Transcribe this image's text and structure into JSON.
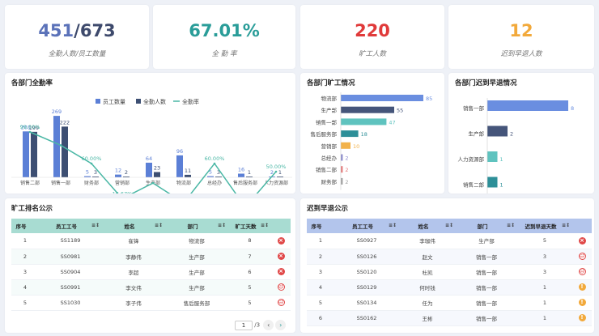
{
  "kpis": [
    {
      "value_a": "451",
      "value_b": "/673",
      "label": "全勤人数/员工数量",
      "color_a": "#5b72b9",
      "color_b": "#3e4a6c"
    },
    {
      "value": "67.01%",
      "label": "全 勤 率",
      "color": "#2a9d99"
    },
    {
      "value": "220",
      "label": "旷工人数",
      "color": "#e03a3a"
    },
    {
      "value": "12",
      "label": "迟到早退人数",
      "color": "#f2a93b"
    }
  ],
  "dept_attendance": {
    "title": "各部门全勤率",
    "legend": [
      "员工数量",
      "全勤人数",
      "全勤率"
    ]
  },
  "absent_dept": {
    "title": "各部门旷工情况"
  },
  "late_dept": {
    "title": "各部门迟到早退情况"
  },
  "chart_data": [
    {
      "type": "bar",
      "title": "各部门全勤率",
      "categories": [
        "销售二部",
        "销售一部",
        "财务部",
        "营销部",
        "生产部",
        "物流部",
        "总经办",
        "售后服务部",
        "人力资源部"
      ],
      "series": [
        {
          "name": "员工数量",
          "values": [
            201,
            269,
            5,
            12,
            64,
            96,
            5,
            16,
            2
          ],
          "color": "#5b7fd6"
        },
        {
          "name": "全勤人数",
          "values": [
            199,
            222,
            3,
            2,
            23,
            11,
            3,
            1,
            1
          ],
          "color": "#3d4f73"
        },
        {
          "name": "全勤率",
          "type": "line",
          "values": [
            99.0,
            82.53,
            60.0,
            16.67,
            35.94,
            11.46,
            60.0,
            6.25,
            50.0
          ],
          "labels": [
            "99.00%",
            "",
            "60.00%",
            "16.67%",
            "",
            "",
            "60.00%",
            "",
            "50.00%"
          ],
          "color": "#4ab7a5"
        }
      ]
    },
    {
      "type": "bar",
      "title": "各部门旷工情况",
      "orientation": "horizontal",
      "categories": [
        "物流部",
        "生产部",
        "销售一部",
        "售后服务部",
        "营销部",
        "总经办",
        "销售二部",
        "财务部"
      ],
      "values": [
        85,
        55,
        47,
        18,
        10,
        2,
        2,
        2
      ],
      "colors": [
        "#6a8ee0",
        "#45557a",
        "#5fc3bf",
        "#2d8f98",
        "#f2b24a",
        "#8c8ccc",
        "#e57a7a",
        "#a0a0a0"
      ]
    },
    {
      "type": "bar",
      "title": "各部门迟到早退情况",
      "orientation": "horizontal",
      "categories": [
        "销售一部",
        "生产部",
        "人力资源部",
        "销售二部"
      ],
      "values": [
        8,
        2,
        1,
        1
      ],
      "colors": [
        "#6a8ee0",
        "#45557a",
        "#5fc3bf",
        "#2d8f98"
      ]
    }
  ],
  "absent_table": {
    "title": "旷工排名公示",
    "headers": [
      "序号",
      "员工工号",
      "姓名",
      "部门",
      "旷工天数"
    ],
    "rows": [
      [
        "1",
        "SS1189",
        "崔锋",
        "物流部",
        "8"
      ],
      [
        "2",
        "SS0981",
        "李静伟",
        "生产部",
        "7"
      ],
      [
        "3",
        "SS0904",
        "李超",
        "生产部",
        "6"
      ],
      [
        "4",
        "SS0991",
        "李文伟",
        "生产部",
        "5"
      ],
      [
        "5",
        "SS1030",
        "李子伟",
        "售后服务部",
        "5"
      ]
    ],
    "status": [
      "x",
      "x",
      "x",
      "sad",
      "sad"
    ],
    "pager": {
      "page": "1",
      "total": "/3"
    }
  },
  "late_table": {
    "title": "迟到早退公示",
    "headers": [
      "序号",
      "员工工号",
      "姓名",
      "部门",
      "迟到早退天数"
    ],
    "rows": [
      [
        "1",
        "SS0927",
        "李珈伟",
        "生产部",
        "5"
      ],
      [
        "2",
        "SS0126",
        "赵文",
        "销售一部",
        "3"
      ],
      [
        "3",
        "SS0120",
        "杜凯",
        "销售一部",
        "3"
      ],
      [
        "4",
        "SS0129",
        "何时钱",
        "销售一部",
        "1"
      ],
      [
        "5",
        "SS0134",
        "任为",
        "销售一部",
        "1"
      ],
      [
        "6",
        "SS0162",
        "王彬",
        "销售一部",
        "1"
      ]
    ],
    "status": [
      "x",
      "sad",
      "sad",
      "warn",
      "warn",
      "warn"
    ]
  }
}
